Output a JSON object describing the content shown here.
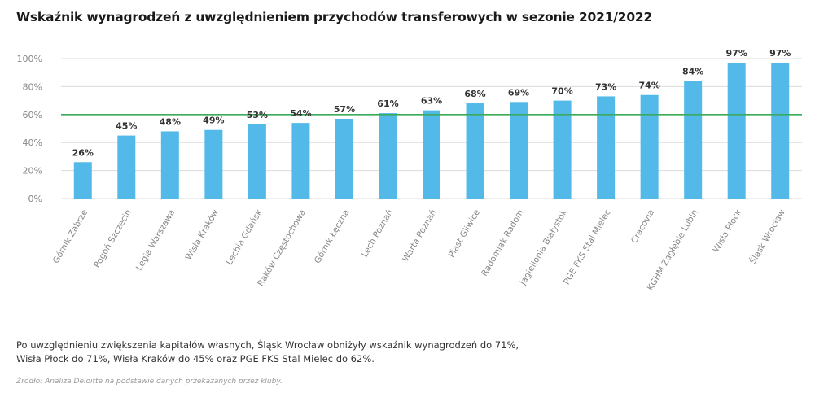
{
  "title": "Wskaźnik wynagrodzeń z uwzględnieniem przychodów transferowych w sezonie 2021/2022",
  "chart_data": {
    "type": "bar",
    "categories": [
      "Górnik Zabrze",
      "Pogoń Szczecin",
      "Legia Warszawa",
      "Wisła Kraków",
      "Lechia Gdańsk",
      "Raków Częstochowa",
      "Górnik Łęczna",
      "Lech Poznań",
      "Warta Poznań",
      "Piast Gliwice",
      "Radomiak Radom",
      "Jagiellonia Białystok",
      "PGE FKS Stal Mielec",
      "Cracovia",
      "KGHM Zagłębie Lubin",
      "Wisła Płock",
      "Śląsk Wrocław"
    ],
    "values": [
      26,
      45,
      48,
      49,
      53,
      54,
      57,
      61,
      63,
      68,
      69,
      70,
      73,
      74,
      84,
      97,
      97
    ],
    "labels": [
      "26%",
      "45%",
      "48%",
      "49%",
      "53%",
      "54%",
      "57%",
      "61%",
      "63%",
      "68%",
      "69%",
      "70%",
      "73%",
      "74%",
      "84%",
      "97%",
      "97%"
    ],
    "yticks": [
      0,
      20,
      40,
      60,
      80,
      100
    ],
    "ytick_labels": [
      "0%",
      "20%",
      "40%",
      "60%",
      "80%",
      "100%"
    ],
    "ylim": [
      0,
      100
    ],
    "reference_line": 60,
    "bar_color": "#52b9e9",
    "line_color": "#3aaa5c",
    "grid": true
  },
  "note": {
    "line1": "Po uwzględnieniu zwiększenia kapitałów własnych, Śląsk Wrocław obniżyły wskaźnik wynagrodzeń do 71%,",
    "line2": "Wisła Płock do 71%, Wisła Kraków do 45% oraz PGE FKS Stal Mielec do 62%."
  },
  "source": "Źródło: Analiza Deloitte na podstawie danych przekazanych przez kluby."
}
